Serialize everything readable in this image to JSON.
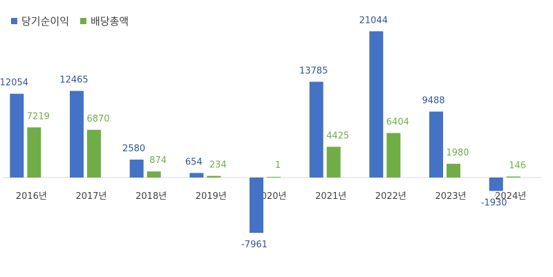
{
  "legend": {
    "items": [
      {
        "label": "당기순이익",
        "color": "#4472C4"
      },
      {
        "label": "배당총액",
        "color": "#70AD47"
      }
    ],
    "placement": "top-left"
  },
  "chart_data": {
    "type": "bar",
    "title": "",
    "xlabel": "",
    "ylabel": "",
    "grid": false,
    "categories": [
      "2016년",
      "2017년",
      "2018년",
      "2019년",
      "2020년",
      "2021년",
      "2022년",
      "2023년",
      "2024년"
    ],
    "series": [
      {
        "name": "당기순이익",
        "color": "#4472C4",
        "label_color": "#2F5597",
        "values": [
          12054,
          12465,
          2580,
          654,
          -7961,
          13785,
          21044,
          9488,
          -1930
        ]
      },
      {
        "name": "배당총액",
        "color": "#70AD47",
        "label_color": "#70AD47",
        "values": [
          7219,
          6870,
          874,
          234,
          1,
          4425,
          6404,
          1980,
          146
        ]
      }
    ],
    "ylim": [
      -14000,
      22000
    ]
  }
}
